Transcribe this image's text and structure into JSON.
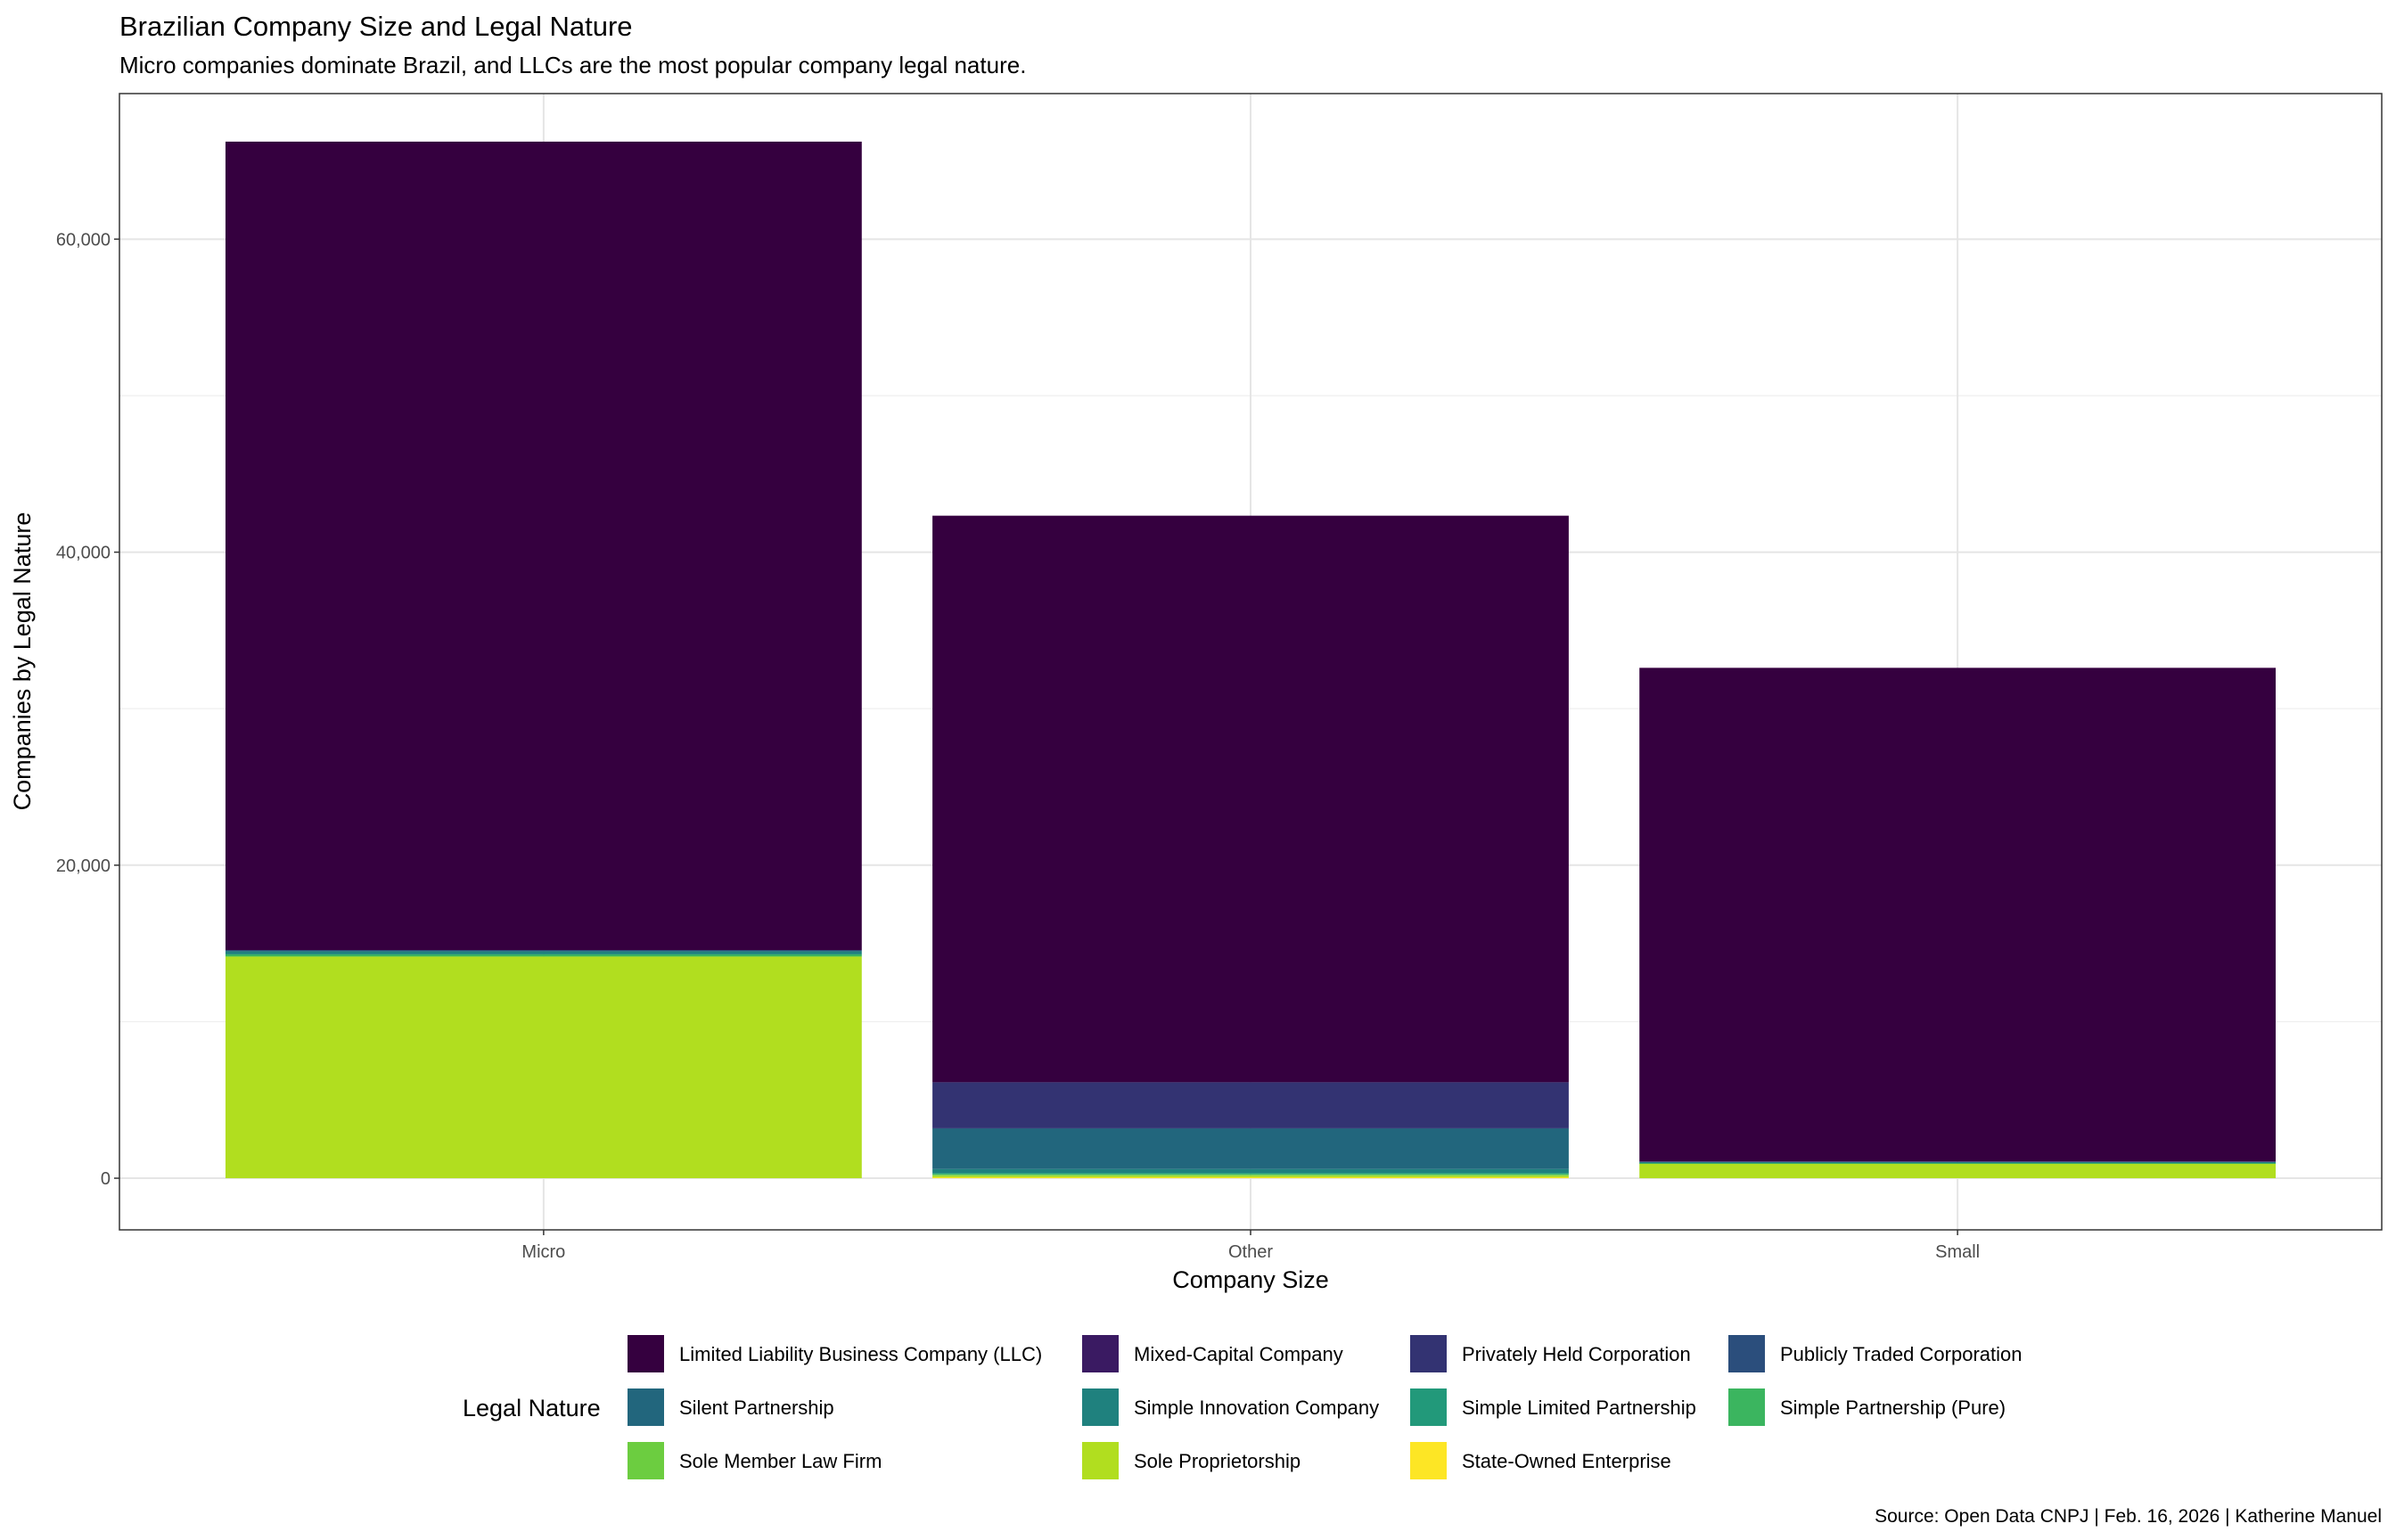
{
  "chart_data": {
    "type": "bar",
    "stacked": true,
    "title": "Brazilian Company Size and Legal Nature",
    "subtitle": "Micro companies dominate Brazil, and LLCs are the most popular company legal nature.",
    "xlabel": "Company Size",
    "ylabel": "Companies by Legal Nature",
    "caption": "Source: Open Data CNPJ | Feb. 16, 2026 | Katherine Manuel",
    "categories": [
      "Micro",
      "Other",
      "Small"
    ],
    "ylim": [
      -3300,
      69300
    ],
    "yticks": [
      0,
      20000,
      40000,
      60000
    ],
    "ytick_labels": [
      "0",
      "20,000",
      "40,000",
      "60,000"
    ],
    "grid": true,
    "legend": {
      "title": "Legal Nature",
      "placement": "bottom"
    },
    "series": [
      {
        "name": "Limited Liability Business Company (LLC)",
        "color": "#35003F",
        "values": [
          51650,
          36200,
          31540
        ]
      },
      {
        "name": "Mixed-Capital Company",
        "color": "#3A1A62",
        "values": [
          0,
          0,
          0
        ]
      },
      {
        "name": "Privately Held Corporation",
        "color": "#333372",
        "values": [
          30,
          2935,
          20
        ]
      },
      {
        "name": "Publicly Traded Corporation",
        "color": "#2B4E7C",
        "values": [
          0,
          10,
          0
        ]
      },
      {
        "name": "Silent Partnership",
        "color": "#22667D",
        "values": [
          60,
          2595,
          20
        ]
      },
      {
        "name": "Simple Innovation Company",
        "color": "#1F817E",
        "values": [
          170,
          250,
          60
        ]
      },
      {
        "name": "Simple Limited Partnership",
        "color": "#22997A",
        "values": [
          20,
          60,
          10
        ]
      },
      {
        "name": "Simple Partnership (Pure)",
        "color": "#3BB55F",
        "values": [
          120,
          60,
          20
        ]
      },
      {
        "name": "Sole Member Law Firm",
        "color": "#6CCD40",
        "values": [
          30,
          60,
          10
        ]
      },
      {
        "name": "Sole Proprietorship",
        "color": "#B1DE1F",
        "values": [
          14150,
          100,
          930
        ]
      },
      {
        "name": "State-Owned Enterprise",
        "color": "#FDE625",
        "values": [
          0,
          60,
          0
        ]
      }
    ]
  }
}
